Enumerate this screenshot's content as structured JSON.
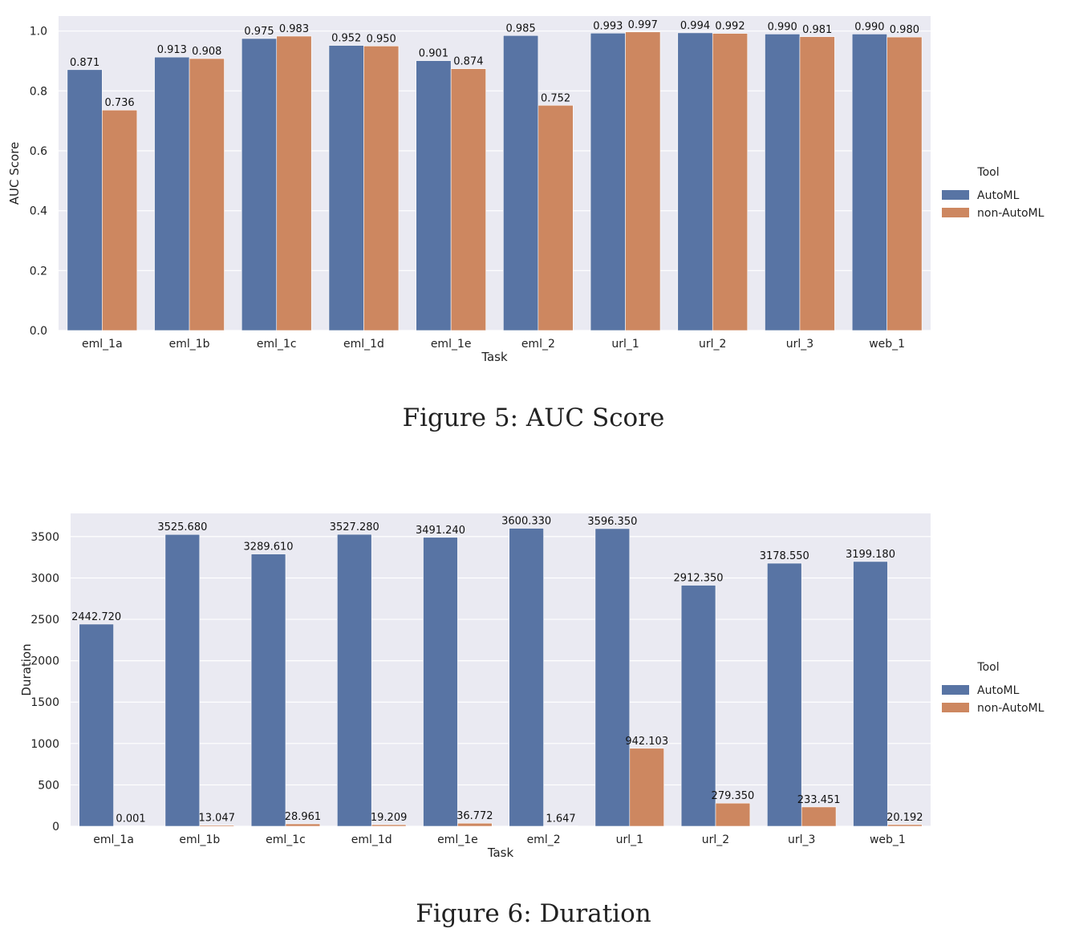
{
  "figures": [
    {
      "caption": "Figure 5:  AUC Score",
      "chart_data": {
        "type": "bar",
        "categories": [
          "eml_1a",
          "eml_1b",
          "eml_1c",
          "eml_1d",
          "eml_1e",
          "eml_2",
          "url_1",
          "url_2",
          "url_3",
          "web_1"
        ],
        "series": [
          {
            "name": "AutoML",
            "values": [
              0.871,
              0.913,
              0.975,
              0.952,
              0.901,
              0.985,
              0.993,
              0.994,
              0.99,
              0.99
            ],
            "labels": [
              "0.871",
              "0.913",
              "0.975",
              "0.952",
              "0.901",
              "0.985",
              "0.993",
              "0.994",
              "0.990",
              "0.990"
            ],
            "color": "#5874a4"
          },
          {
            "name": "non-AutoML",
            "values": [
              0.736,
              0.908,
              0.983,
              0.95,
              0.874,
              0.752,
              0.997,
              0.992,
              0.981,
              0.98
            ],
            "labels": [
              "0.736",
              "0.908",
              "0.983",
              "0.950",
              "0.874",
              "0.752",
              "0.997",
              "0.992",
              "0.981",
              "0.980"
            ],
            "color": "#cd8760"
          }
        ],
        "xlabel": "Task",
        "ylabel": "AUC Score",
        "ylim": [
          0,
          1.05
        ],
        "yticks": [
          0,
          0.2,
          0.4,
          0.6,
          0.8,
          1.0
        ],
        "ytick_labels": [
          "0.0",
          "0.2",
          "0.4",
          "0.6",
          "0.8",
          "1.0"
        ],
        "legend_title": "Tool",
        "legend_position": "right",
        "grid": true,
        "background": "#eaeaf2"
      }
    },
    {
      "caption": "Figure 6:  Duration",
      "chart_data": {
        "type": "bar",
        "categories": [
          "eml_1a",
          "eml_1b",
          "eml_1c",
          "eml_1d",
          "eml_1e",
          "eml_2",
          "url_1",
          "url_2",
          "url_3",
          "web_1"
        ],
        "series": [
          {
            "name": "AutoML",
            "values": [
              2442.72,
              3525.68,
              3289.61,
              3527.28,
              3491.24,
              3600.33,
              3596.35,
              2912.35,
              3178.55,
              3199.18
            ],
            "labels": [
              "2442.720",
              "3525.680",
              "3289.610",
              "3527.280",
              "3491.240",
              "3600.330",
              "3596.350",
              "2912.350",
              "3178.550",
              "3199.180"
            ],
            "color": "#5874a4"
          },
          {
            "name": "non-AutoML",
            "values": [
              0.001,
              13.047,
              28.961,
              19.209,
              36.772,
              1.647,
              942.103,
              279.35,
              233.451,
              20.192
            ],
            "labels": [
              "0.001",
              "13.047",
              "28.961",
              "19.209",
              "36.772",
              "1.647",
              "942.103",
              "279.350",
              "233.451",
              "20.192"
            ],
            "color": "#cd8760"
          }
        ],
        "xlabel": "Task",
        "ylabel": "Duration",
        "ylim": [
          0,
          3780
        ],
        "yticks": [
          0,
          500,
          1000,
          1500,
          2000,
          2500,
          3000,
          3500
        ],
        "ytick_labels": [
          "0",
          "500",
          "1000",
          "1500",
          "2000",
          "2500",
          "3000",
          "3500"
        ],
        "legend_title": "Tool",
        "legend_position": "right",
        "grid": true,
        "background": "#eaeaf2"
      }
    }
  ]
}
